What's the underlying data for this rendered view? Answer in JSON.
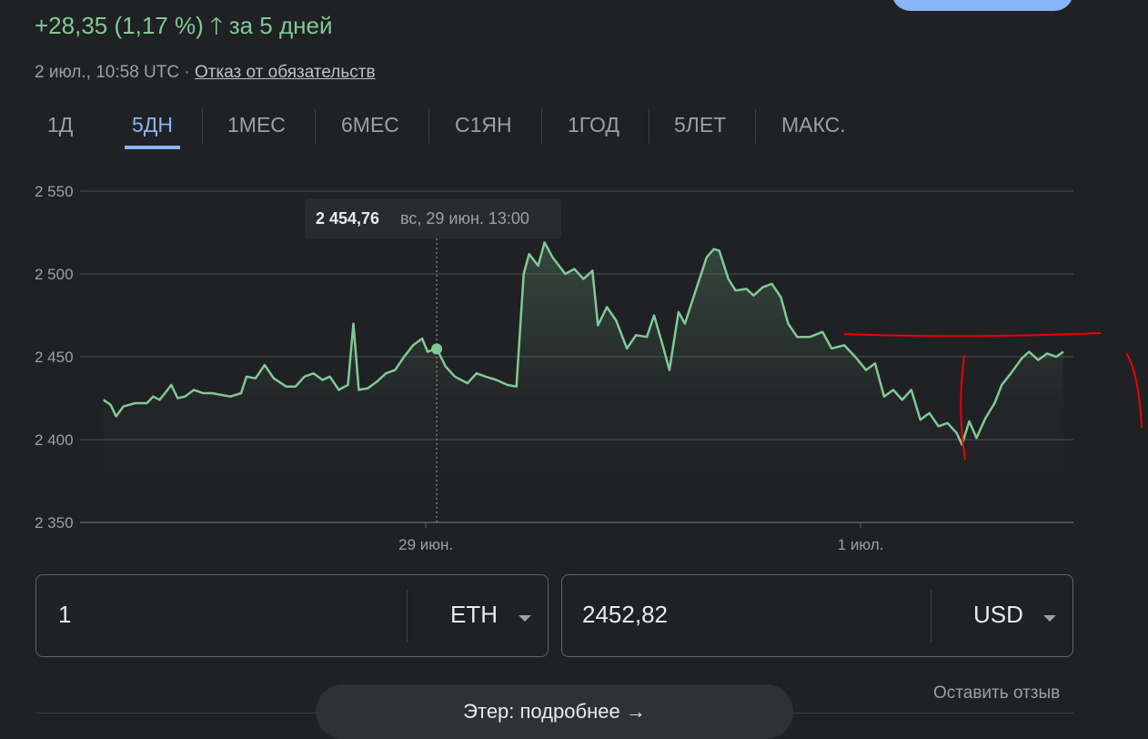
{
  "header": {
    "change": "+28,35 (1,17 %)",
    "period": "за 5 дней",
    "timestamp": "2 июл., 10:58 UTC ·",
    "disclaimer": "Отказ от обязательств"
  },
  "tabs": {
    "items": [
      "1Д",
      "5ДН",
      "1МЕС",
      "6МЕС",
      "С1ЯН",
      "1ГОД",
      "5ЛЕТ",
      "МАКС."
    ],
    "active": 1
  },
  "chart_data": {
    "type": "line",
    "color": "#81c995",
    "grid": true,
    "x": [
      -35.6,
      -34.8,
      -34.2,
      -33.4,
      -32.1,
      -30.8,
      -30.1,
      -29.4,
      -28.8,
      -28.1,
      -27.4,
      -26.6,
      -25.6,
      -24.6,
      -23.6,
      -22.6,
      -21.6,
      -20.4,
      -19.8,
      -18.8,
      -17.8,
      -16.8,
      -15.4,
      -14.4,
      -13.4,
      -12.4,
      -11.4,
      -10.6,
      -9.6,
      -8.6,
      -8,
      -7.4,
      -6.4,
      -5.4,
      -4.4,
      -3.4,
      -2.4,
      -1.4,
      -0.4,
      0.2,
      1.2,
      2.2,
      3.2,
      4.6,
      5.6,
      6.6,
      7.8,
      9,
      10,
      10.8,
      11.4,
      12.4,
      13.1,
      14,
      15.4,
      16.4,
      17.4,
      18.4,
      19,
      20,
      21,
      22.2,
      23.2,
      24.4,
      25.2,
      26.2,
      26.9,
      27.9,
      28.6,
      29.8,
      31,
      31.8,
      32.4,
      33.4,
      34.2,
      35.4,
      36.2,
      37.2,
      38.2,
      39.2,
      40,
      41,
      42.4,
      43.8,
      44.8,
      46.2,
      47.4,
      48.6,
      49.6,
      50.6,
      51.6,
      52.6,
      53.6,
      54.6,
      55.6,
      56.6,
      57.6,
      58.6,
      59.2,
      60,
      60.8,
      61.8,
      62.8,
      63.6,
      64.6,
      65.8,
      66.6,
      67.6,
      68.6,
      69.6,
      70.4
    ],
    "values": [
      2424,
      2421,
      2414,
      2420,
      2422,
      2422,
      2426,
      2424,
      2428,
      2433,
      2425,
      2426,
      2430,
      2428,
      2428,
      2427,
      2426,
      2428,
      2438,
      2437,
      2445,
      2437,
      2432,
      2432,
      2438,
      2440,
      2436,
      2438,
      2430,
      2433,
      2470,
      2430,
      2431,
      2435,
      2440,
      2442,
      2450,
      2457,
      2461,
      2453,
      2455,
      2444,
      2438,
      2434,
      2440,
      2438,
      2436,
      2433,
      2432,
      2500,
      2512,
      2505,
      2519,
      2510,
      2500,
      2503,
      2497,
      2502,
      2469,
      2480,
      2472,
      2455,
      2463,
      2462,
      2475,
      2456,
      2442,
      2477,
      2470,
      2490,
      2510,
      2515,
      2514,
      2497,
      2490,
      2491,
      2487,
      2492,
      2494,
      2486,
      2470,
      2462,
      2462,
      2465,
      2455,
      2457,
      2450,
      2442,
      2446,
      2426,
      2430,
      2424,
      2430,
      2412,
      2416,
      2408,
      2410,
      2404,
      2397,
      2411,
      2401,
      2413,
      2422,
      2433,
      2440,
      2449,
      2453,
      2448,
      2452,
      2450,
      2453
    ],
    "xlim": [
      -43,
      71.5
    ],
    "xticks": [
      {
        "value": 0,
        "label": "29 июн."
      },
      {
        "value": 48,
        "label": "1 июл."
      }
    ],
    "ylim": [
      2350,
      2550
    ],
    "yticks": [
      {
        "value": 2350,
        "label": "2 350"
      },
      {
        "value": 2400,
        "label": "2 400"
      },
      {
        "value": 2450,
        "label": "2 450"
      },
      {
        "value": 2500,
        "label": "2 500"
      },
      {
        "value": 2550,
        "label": "2 550"
      }
    ],
    "hover": {
      "x": 1.2,
      "value": 2454.76,
      "label": "2 454,76",
      "time": "вс, 29 июн. 13:00"
    }
  },
  "converter": {
    "amount": "1",
    "from": "ETH",
    "result": "2452,82",
    "to": "USD"
  },
  "feedback": "Оставить отзыв",
  "more_button": "Этер: подробнее"
}
